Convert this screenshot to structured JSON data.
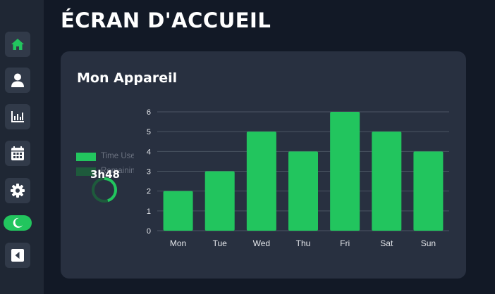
{
  "page": {
    "title": "ÉCRAN D'ACCUEIL"
  },
  "sidebar": {
    "items": [
      {
        "name": "home",
        "icon": "home-icon",
        "active": true
      },
      {
        "name": "profile",
        "icon": "user-icon",
        "active": false
      },
      {
        "name": "stats",
        "icon": "bar-chart-icon",
        "active": false
      },
      {
        "name": "calendar",
        "icon": "calendar-icon",
        "active": false
      },
      {
        "name": "settings",
        "icon": "gear-icon",
        "active": false
      },
      {
        "name": "theme-toggle",
        "icon": "moon-icon",
        "active": true
      },
      {
        "name": "collapse",
        "icon": "collapse-left-icon",
        "active": false
      }
    ],
    "colors": {
      "accent": "#22c55e",
      "button_bg": "#313a49",
      "icon": "#ffffff"
    }
  },
  "card": {
    "title": "Mon Appareil",
    "legend": [
      {
        "label": "Time Used",
        "color": "#22c55e"
      },
      {
        "label": "Remaining",
        "color": "#1e5a3c"
      }
    ],
    "donut": {
      "value_text": "3h48",
      "fill_fraction": 0.45,
      "color": "#22c55e",
      "track_color": "#1e5a3c"
    }
  },
  "chart_data": {
    "type": "bar",
    "categories": [
      "Mon",
      "Tue",
      "Wed",
      "Thu",
      "Fri",
      "Sat",
      "Sun"
    ],
    "values": [
      2,
      3,
      5,
      4,
      6,
      5,
      4
    ],
    "title": "",
    "xlabel": "",
    "ylabel": "",
    "ylim": [
      0,
      6
    ],
    "yticks": [
      0,
      1,
      2,
      3,
      4,
      5,
      6
    ],
    "grid": true,
    "color": "#22c55e"
  }
}
